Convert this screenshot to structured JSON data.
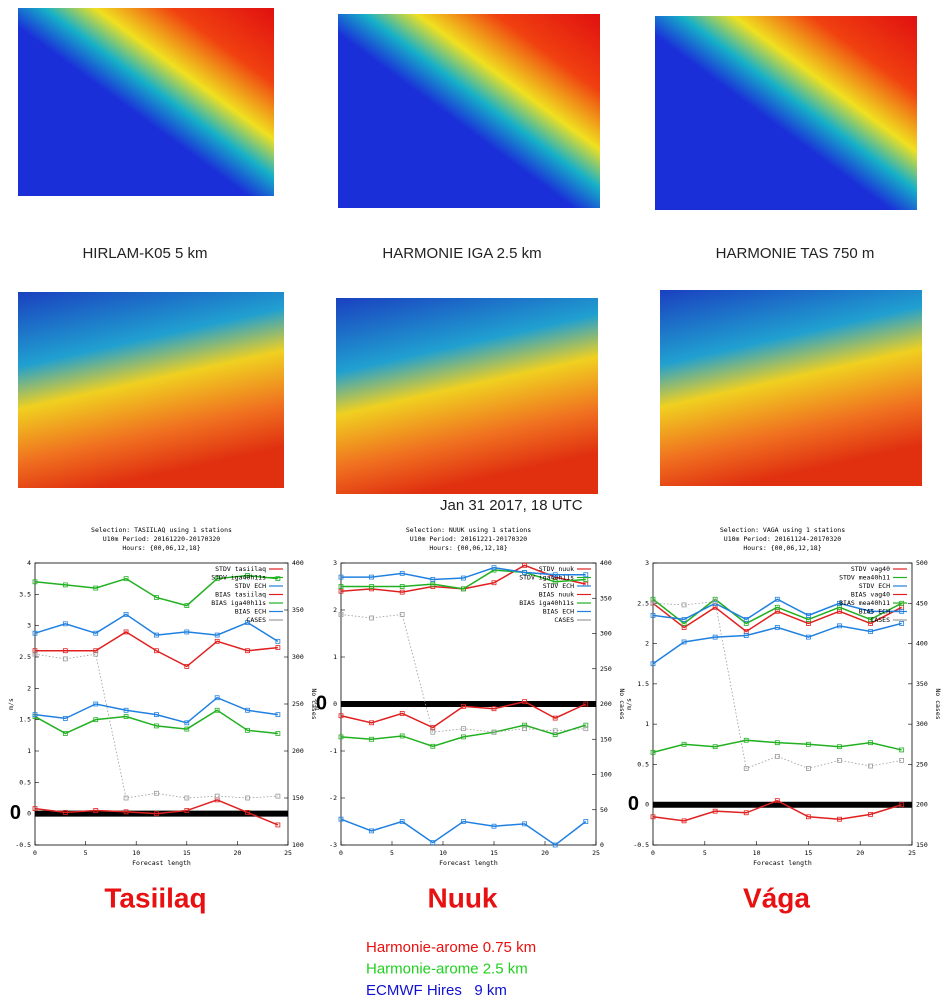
{
  "maps": {
    "captions": [
      "HIRLAM-K05 5 km",
      "HARMONIE IGA 2.5 km",
      "HARMONIE TAS 750 m"
    ],
    "date": "Jan 31 2017, 18 UTC"
  },
  "chart_data": [
    {
      "type": "line",
      "title": [
        "Selection: TASIILAQ using    1 stations",
        "U10m   Period: 20161220-20170320",
        "Hours: {00,06,12,18}"
      ],
      "station": "Tasiilaq",
      "x_label": "Forecast length",
      "y_label": "m/s",
      "y2_label": "No cases",
      "x": [
        0,
        3,
        6,
        9,
        12,
        15,
        18,
        21,
        24
      ],
      "xlim": [
        0,
        25
      ],
      "xticks": [
        0,
        5,
        10,
        15,
        20,
        25
      ],
      "ylim": [
        -0.5,
        4
      ],
      "yticks": [
        -0.5,
        0,
        0.5,
        1,
        1.5,
        2,
        2.5,
        3,
        3.5,
        4
      ],
      "y2lim": [
        100,
        400
      ],
      "y2ticks": [
        100,
        150,
        200,
        250,
        300,
        350,
        400
      ],
      "zero_line": 0,
      "series": [
        {
          "name": "STDV tasiilaq",
          "color": "#e02020",
          "values": [
            2.6,
            2.6,
            2.6,
            2.9,
            2.6,
            2.35,
            2.75,
            2.6,
            2.65
          ]
        },
        {
          "name": "STDV iga40h11s",
          "color": "#20b020",
          "values": [
            3.7,
            3.65,
            3.6,
            3.75,
            3.45,
            3.32,
            3.75,
            3.8,
            3.75
          ]
        },
        {
          "name": "STDV ECH",
          "color": "#2080e0",
          "values": [
            2.88,
            3.03,
            2.88,
            3.18,
            2.85,
            2.9,
            2.85,
            3.05,
            2.75
          ]
        },
        {
          "name": "BIAS tasiilaq",
          "color": "#e02020",
          "values": [
            0.08,
            0.02,
            0.05,
            0.03,
            0.0,
            0.05,
            0.22,
            0.02,
            -0.18
          ]
        },
        {
          "name": "BIAS iga40h11s",
          "color": "#20b020",
          "values": [
            1.55,
            1.28,
            1.5,
            1.55,
            1.4,
            1.35,
            1.65,
            1.33,
            1.28
          ]
        },
        {
          "name": "BIAS ECH",
          "color": "#2080e0",
          "values": [
            1.58,
            1.52,
            1.75,
            1.65,
            1.58,
            1.45,
            1.85,
            1.65,
            1.58
          ]
        },
        {
          "name": "CASES",
          "color": "#999999",
          "axis": "y2",
          "line_style": "dotted",
          "values": [
            303,
            298,
            303,
            150,
            155,
            150,
            152,
            150,
            152
          ]
        }
      ]
    },
    {
      "type": "line",
      "title": [
        "Selection: NUUK using    1 stations",
        "U10m   Period: 20161221-20170320",
        "Hours: {00,06,12,18}"
      ],
      "station": "Nuuk",
      "x_label": "Forecast length",
      "y_label": "m/s",
      "y2_label": "No cases",
      "x": [
        0,
        3,
        6,
        9,
        12,
        15,
        18,
        21,
        24
      ],
      "xlim": [
        0,
        25
      ],
      "xticks": [
        0,
        5,
        10,
        15,
        20,
        25
      ],
      "ylim": [
        -3,
        3
      ],
      "yticks": [
        -3,
        -2,
        -1,
        0,
        1,
        2,
        3
      ],
      "y2lim": [
        0,
        400
      ],
      "y2ticks": [
        0,
        50,
        100,
        150,
        200,
        250,
        300,
        350,
        400
      ],
      "zero_line": 0,
      "series": [
        {
          "name": "STDV nuuk",
          "color": "#e02020",
          "values": [
            2.4,
            2.45,
            2.38,
            2.5,
            2.45,
            2.58,
            2.95,
            2.7,
            2.55
          ]
        },
        {
          "name": "STDV iga40h11s",
          "color": "#20b020",
          "values": [
            2.5,
            2.5,
            2.5,
            2.55,
            2.45,
            2.85,
            2.8,
            2.6,
            2.65
          ]
        },
        {
          "name": "STDV ECH",
          "color": "#2080e0",
          "values": [
            2.7,
            2.7,
            2.78,
            2.65,
            2.68,
            2.9,
            2.8,
            2.75,
            2.75
          ]
        },
        {
          "name": "BIAS nuuk",
          "color": "#e02020",
          "values": [
            -0.25,
            -0.4,
            -0.2,
            -0.5,
            -0.05,
            -0.1,
            0.05,
            -0.3,
            0.0
          ]
        },
        {
          "name": "BIAS iga40h11s",
          "color": "#20b020",
          "values": [
            -0.7,
            -0.75,
            -0.68,
            -0.9,
            -0.7,
            -0.6,
            -0.45,
            -0.65,
            -0.45
          ]
        },
        {
          "name": "BIAS ECH",
          "color": "#2080e0",
          "values": [
            -2.45,
            -2.7,
            -2.5,
            -2.95,
            -2.5,
            -2.6,
            -2.55,
            -3.0,
            -2.5
          ]
        },
        {
          "name": "CASES",
          "color": "#999999",
          "axis": "y2",
          "line_style": "dotted",
          "values": [
            327,
            322,
            327,
            160,
            165,
            160,
            165,
            162,
            165
          ]
        }
      ]
    },
    {
      "type": "line",
      "title": [
        "Selection: VAGA using    1 stations",
        "U10m   Period: 20161124-20170320",
        "Hours: {00,06,12,18}"
      ],
      "station": "Vága",
      "x_label": "Forecast length",
      "y_label": "m/s",
      "y2_label": "No cases",
      "x": [
        0,
        3,
        6,
        9,
        12,
        15,
        18,
        21,
        24
      ],
      "xlim": [
        0,
        25
      ],
      "xticks": [
        0,
        5,
        10,
        15,
        20,
        25
      ],
      "ylim": [
        -0.5,
        3
      ],
      "yticks": [
        -0.5,
        0,
        0.5,
        1,
        1.5,
        2,
        2.5,
        3
      ],
      "y2lim": [
        150,
        500
      ],
      "y2ticks": [
        150,
        200,
        250,
        300,
        350,
        400,
        450,
        500
      ],
      "zero_line": 0,
      "series": [
        {
          "name": "STDV vag40",
          "color": "#e02020",
          "values": [
            2.5,
            2.2,
            2.45,
            2.15,
            2.4,
            2.25,
            2.4,
            2.25,
            2.45
          ]
        },
        {
          "name": "STDV mea40h11",
          "color": "#20b020",
          "values": [
            2.55,
            2.25,
            2.55,
            2.25,
            2.45,
            2.3,
            2.45,
            2.3,
            2.5
          ]
        },
        {
          "name": "STDV ECH",
          "color": "#2080e0",
          "values": [
            2.35,
            2.3,
            2.5,
            2.3,
            2.55,
            2.35,
            2.5,
            2.4,
            2.4
          ]
        },
        {
          "name": "BIAS vag40",
          "color": "#e02020",
          "values": [
            -0.15,
            -0.2,
            -0.08,
            -0.1,
            0.05,
            -0.15,
            -0.18,
            -0.12,
            0.0
          ]
        },
        {
          "name": "BIAS mea40h11",
          "color": "#20b020",
          "values": [
            0.65,
            0.75,
            0.72,
            0.8,
            0.77,
            0.75,
            0.72,
            0.77,
            0.68
          ]
        },
        {
          "name": "BIAS ECH",
          "color": "#2080e0",
          "values": [
            1.75,
            2.02,
            2.08,
            2.1,
            2.2,
            2.08,
            2.22,
            2.15,
            2.25
          ]
        },
        {
          "name": "CASES",
          "color": "#999999",
          "axis": "y2",
          "line_style": "dotted",
          "values": [
            450,
            448,
            452,
            245,
            260,
            245,
            255,
            248,
            255
          ]
        }
      ]
    }
  ],
  "legend": [
    {
      "text": "Harmonie-arome 0.75 km",
      "color": "#e81010"
    },
    {
      "text": "Harmonie-arome 2.5 km",
      "color": "#20d020"
    },
    {
      "text": "ECMWF Hires   9 km",
      "color": "#1010d0"
    }
  ]
}
